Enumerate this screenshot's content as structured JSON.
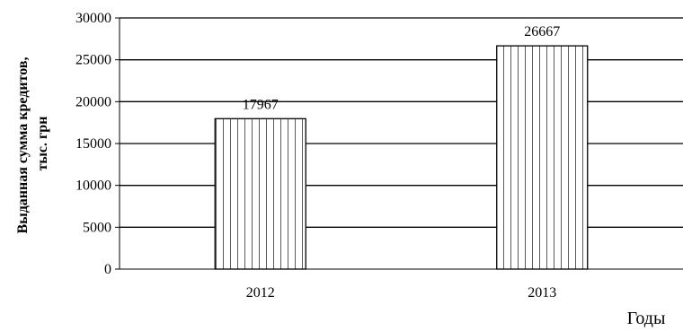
{
  "chart_data": {
    "type": "bar",
    "categories": [
      "2012",
      "2013"
    ],
    "values": [
      17967,
      26667
    ],
    "data_labels": [
      "17967",
      "26667"
    ],
    "yticks": [
      "0",
      "5000",
      "10000",
      "15000",
      "20000",
      "25000",
      "30000"
    ],
    "ylim": [
      0,
      30000
    ],
    "ylabel_lines": [
      "Выданная сумма кредитов,",
      "тыс. грн"
    ],
    "xlabel": "Годы",
    "grid": true,
    "bar_fill": "vertical-hatch",
    "colors": {
      "bar_stroke": "#000000",
      "bar_fill": "#ffffff",
      "grid": "#000000"
    }
  }
}
